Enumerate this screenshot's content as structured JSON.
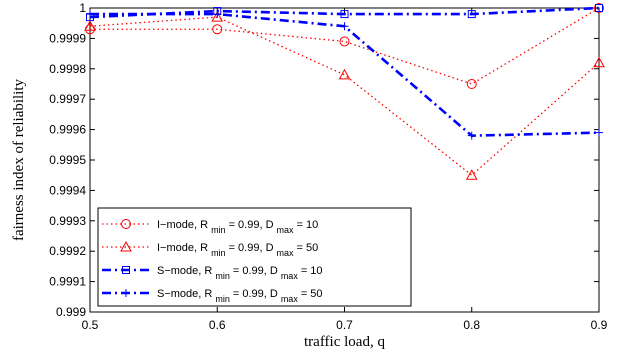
{
  "chart_data": {
    "type": "line",
    "xlabel": "traffic load, q",
    "ylabel": "fairness index of reliability",
    "xlim": [
      0.5,
      0.9
    ],
    "ylim": [
      0.999,
      1.0
    ],
    "x": [
      0.5,
      0.6,
      0.7,
      0.8,
      0.9
    ],
    "x_tick_labels": [
      "0.5",
      "0.6",
      "0.7",
      "0.8",
      "0.9"
    ],
    "y_ticks": [
      0.999,
      0.9991,
      0.9992,
      0.9993,
      0.9994,
      0.9995,
      0.9996,
      0.9997,
      0.9998,
      0.9999,
      1.0
    ],
    "y_tick_labels": [
      "0.999",
      "0.9991",
      "0.9992",
      "0.9993",
      "0.9994",
      "0.9995",
      "0.9996",
      "0.9997",
      "0.9998",
      "0.9999",
      "1"
    ],
    "grid": false,
    "legend_position": "bottom-left",
    "series": [
      {
        "label_main": "I−mode, R",
        "label_sub1": "min",
        "label_mid": "= 0.99, D",
        "label_sub2": "max",
        "label_end": "= 10",
        "values": [
          0.99993,
          0.99993,
          0.99989,
          0.99975,
          1.0
        ],
        "color": "#ff0000",
        "line_style": "dotted",
        "marker": "circle"
      },
      {
        "label_main": "I−mode, R",
        "label_sub1": "min",
        "label_mid": "= 0.99, D",
        "label_sub2": "max",
        "label_end": "= 50",
        "values": [
          0.99994,
          0.99997,
          0.99978,
          0.99945,
          0.99982
        ],
        "color": "#ff0000",
        "line_style": "dotted",
        "marker": "triangle"
      },
      {
        "label_main": "S−mode, R",
        "label_sub1": "min",
        "label_mid": "= 0.99, D",
        "label_sub2": "max",
        "label_end": "= 10",
        "values": [
          0.99997,
          0.99999,
          0.99998,
          0.99998,
          1.0
        ],
        "color": "#0000ff",
        "line_style": "dashdot",
        "marker": "square"
      },
      {
        "label_main": "S−mode, R",
        "label_sub1": "min",
        "label_mid": "= 0.99, D",
        "label_sub2": "max",
        "label_end": "= 50",
        "values": [
          0.99998,
          0.99998,
          0.99994,
          0.99958,
          0.99959
        ],
        "color": "#0000ff",
        "line_style": "dashdot",
        "marker": "plus"
      }
    ]
  }
}
